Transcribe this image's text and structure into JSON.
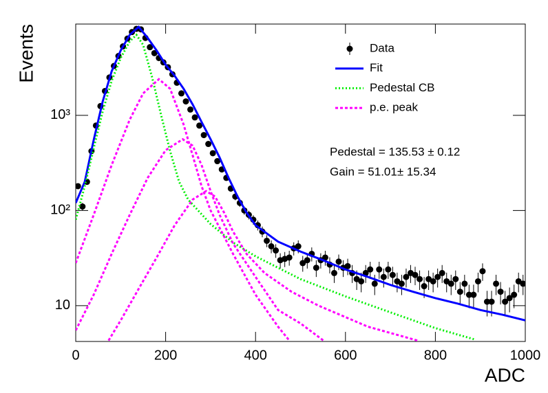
{
  "chart_data": {
    "type": "scatter",
    "x_label": "ADC",
    "y_label": "Events",
    "xlim": [
      0,
      1000
    ],
    "xticks": [
      0,
      200,
      400,
      600,
      800,
      1000
    ],
    "ylim": [
      4.2,
      9100
    ],
    "log_y": true,
    "yticks": [
      10,
      {
        "value": 100,
        "label": "10²"
      },
      {
        "value": 1000,
        "label": "10³"
      }
    ],
    "legend": "top-right",
    "annotations": [
      "Pedestal = 135.53 ± 0.12",
      "Gain = 51.01± 15.34"
    ],
    "series": [
      {
        "name": "Data",
        "color": "#000000",
        "style": "points",
        "x": [
          5,
          15,
          25,
          35,
          45,
          55,
          65,
          75,
          85,
          95,
          105,
          115,
          125,
          135,
          145,
          155,
          165,
          175,
          185,
          195,
          205,
          215,
          225,
          235,
          245,
          255,
          265,
          275,
          285,
          295,
          305,
          315,
          325,
          335,
          345,
          355,
          365,
          375,
          385,
          395,
          405,
          415,
          425,
          435,
          445,
          455,
          465,
          475,
          485,
          495,
          505,
          515,
          525,
          535,
          545,
          555,
          565,
          575,
          585,
          595,
          605,
          615,
          625,
          635,
          645,
          655,
          665,
          675,
          685,
          695,
          705,
          715,
          725,
          735,
          745,
          755,
          765,
          775,
          785,
          795,
          805,
          815,
          825,
          835,
          845,
          855,
          865,
          875,
          885,
          895,
          905,
          915,
          925,
          935,
          945,
          955,
          965,
          975,
          985,
          995
        ],
        "values": [
          180,
          110,
          200,
          420,
          780,
          1250,
          1800,
          2500,
          3300,
          4200,
          5300,
          6400,
          7500,
          8100,
          8000,
          6500,
          5200,
          4500,
          4000,
          3600,
          3200,
          2700,
          2200,
          1700,
          1400,
          1150,
          950,
          780,
          620,
          500,
          400,
          330,
          270,
          220,
          170,
          140,
          120,
          100,
          90,
          80,
          70,
          60,
          48,
          42,
          38,
          30,
          31,
          32,
          40,
          42,
          28,
          30,
          35,
          25,
          30,
          32,
          27,
          22,
          29,
          25,
          26,
          22,
          19,
          18,
          22,
          24,
          17,
          24,
          20,
          24,
          21,
          18,
          17,
          20,
          22,
          21,
          19,
          16,
          19,
          18,
          20,
          22,
          18,
          17,
          19,
          14,
          17,
          13,
          13,
          18,
          23,
          11,
          11,
          17,
          14,
          11,
          12,
          13,
          18,
          17
        ],
        "errors": [
          13,
          10,
          14,
          20,
          28,
          35,
          42,
          50,
          57,
          65,
          73,
          80,
          87,
          90,
          89,
          81,
          72,
          67,
          63,
          60,
          57,
          52,
          47,
          41,
          37,
          34,
          31,
          28,
          25,
          22,
          20,
          18,
          16,
          15,
          13,
          12,
          11,
          10,
          9.5,
          9,
          8.4,
          7.7,
          6.9,
          6.5,
          6.2,
          5.5,
          5.6,
          5.7,
          6.3,
          6.5,
          5.3,
          5.5,
          5.9,
          5,
          5.5,
          5.7,
          5.2,
          4.7,
          5.4,
          5,
          5.1,
          4.7,
          4.4,
          4.2,
          4.7,
          4.9,
          4.1,
          4.9,
          4.5,
          4.9,
          4.6,
          4.2,
          4.1,
          4.5,
          4.7,
          4.6,
          4.4,
          4,
          4.4,
          4.2,
          4.5,
          4.7,
          4.2,
          4.1,
          4.4,
          3.7,
          4.1,
          3.6,
          3.6,
          4.2,
          4.8,
          3.3,
          3.3,
          4.1,
          3.7,
          3.3,
          3.5,
          3.6,
          4.2,
          4.1
        ]
      },
      {
        "name": "Fit",
        "color": "#0000ff",
        "style": "solid",
        "x": [
          0,
          20,
          40,
          60,
          80,
          100,
          120,
          140,
          160,
          180,
          200,
          220,
          240,
          260,
          280,
          300,
          320,
          340,
          360,
          380,
          400,
          450,
          500,
          550,
          600,
          650,
          700,
          750,
          800,
          850,
          900,
          950,
          1000
        ],
        "values": [
          120,
          200,
          550,
          1400,
          2900,
          4800,
          7000,
          8500,
          6500,
          4800,
          3400,
          2600,
          1900,
          1300,
          850,
          560,
          360,
          220,
          140,
          95,
          70,
          47,
          37,
          30,
          24,
          20,
          16.5,
          14,
          12,
          10.5,
          9,
          8,
          7
        ]
      },
      {
        "name": "Pedestal CB",
        "color": "#00ee00",
        "style": "dotted",
        "x": [
          0,
          20,
          40,
          60,
          80,
          100,
          120,
          135,
          150,
          170,
          190,
          210,
          230,
          250,
          300,
          350,
          400,
          450,
          500,
          600,
          700,
          800,
          888
        ],
        "values": [
          80,
          180,
          450,
          1100,
          2300,
          4000,
          6000,
          7000,
          5500,
          2500,
          1000,
          420,
          200,
          130,
          72,
          46,
          33,
          25,
          19,
          12.5,
          8.5,
          5.8,
          4.4
        ]
      },
      {
        "name": "p.e. peak",
        "color": "#ff00ff",
        "style": "dashed",
        "curves": [
          {
            "x": [
              0,
              40,
              80,
              120,
              150,
              185,
              210,
              240,
              260,
              280,
              300,
              350,
              400,
              450,
              475
            ],
            "values": [
              28,
              90,
              300,
              900,
              1700,
              2400,
              1900,
              800,
              380,
              180,
              100,
              35,
              13,
              6,
              4.3
            ]
          },
          {
            "x": [
              0,
              40,
              80,
              120,
              160,
              200,
              238,
              260,
              280,
              300,
              320,
              350,
              400,
              450,
              500,
              551
            ],
            "values": [
              5.5,
              13,
              35,
              90,
              220,
              430,
              560,
              480,
              300,
              160,
              90,
              45,
              20,
              9,
              6.5,
              4.3
            ]
          },
          {
            "x": [
              73,
              100,
              140,
              180,
              220,
              260,
              290,
              310,
              330,
              350,
              380,
              420,
              480,
              540,
              650,
              760
            ],
            "values": [
              4.3,
              7,
              15,
              32,
              70,
              130,
              160,
              140,
              95,
              60,
              35,
              22,
              14,
              10,
              6,
              4.3
            ]
          }
        ]
      }
    ]
  }
}
